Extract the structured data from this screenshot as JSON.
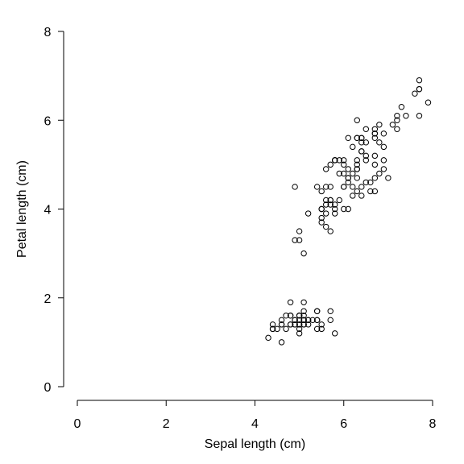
{
  "chart_data": {
    "type": "scatter",
    "title": "",
    "xlabel": "Sepal length (cm)",
    "ylabel": "Petal length (cm)",
    "xlim": [
      0,
      8
    ],
    "ylim": [
      0,
      8
    ],
    "xticks": [
      "0",
      "2",
      "4",
      "6",
      "8"
    ],
    "yticks": [
      "0",
      "2",
      "4",
      "6",
      "8"
    ],
    "grid": false,
    "legend": "none",
    "marker": "open-circle",
    "color": "#000000",
    "series": [
      {
        "points": [
          [
            5.1,
            1.4
          ],
          [
            4.9,
            1.4
          ],
          [
            4.7,
            1.3
          ],
          [
            4.6,
            1.5
          ],
          [
            5.0,
            1.4
          ],
          [
            5.4,
            1.7
          ],
          [
            4.6,
            1.4
          ],
          [
            5.0,
            1.5
          ],
          [
            4.4,
            1.4
          ],
          [
            4.9,
            1.5
          ],
          [
            5.4,
            1.5
          ],
          [
            4.8,
            1.6
          ],
          [
            4.8,
            1.4
          ],
          [
            4.3,
            1.1
          ],
          [
            5.8,
            1.2
          ],
          [
            5.7,
            1.5
          ],
          [
            5.4,
            1.3
          ],
          [
            5.1,
            1.4
          ],
          [
            5.7,
            1.7
          ],
          [
            5.1,
            1.5
          ],
          [
            5.4,
            1.7
          ],
          [
            5.1,
            1.5
          ],
          [
            4.6,
            1.0
          ],
          [
            5.1,
            1.7
          ],
          [
            4.8,
            1.9
          ],
          [
            5.0,
            1.6
          ],
          [
            5.0,
            1.6
          ],
          [
            5.2,
            1.5
          ],
          [
            5.2,
            1.4
          ],
          [
            4.7,
            1.6
          ],
          [
            4.8,
            1.6
          ],
          [
            5.4,
            1.5
          ],
          [
            5.2,
            1.5
          ],
          [
            5.5,
            1.4
          ],
          [
            4.9,
            1.5
          ],
          [
            5.0,
            1.2
          ],
          [
            5.5,
            1.3
          ],
          [
            4.9,
            1.4
          ],
          [
            4.4,
            1.3
          ],
          [
            5.1,
            1.5
          ],
          [
            5.0,
            1.3
          ],
          [
            4.5,
            1.3
          ],
          [
            4.4,
            1.3
          ],
          [
            5.0,
            1.6
          ],
          [
            5.1,
            1.9
          ],
          [
            4.8,
            1.4
          ],
          [
            5.1,
            1.6
          ],
          [
            4.6,
            1.4
          ],
          [
            5.3,
            1.5
          ],
          [
            5.0,
            1.4
          ],
          [
            7.0,
            4.7
          ],
          [
            6.4,
            4.5
          ],
          [
            6.9,
            4.9
          ],
          [
            5.5,
            4.0
          ],
          [
            6.5,
            4.6
          ],
          [
            5.7,
            4.5
          ],
          [
            6.3,
            4.7
          ],
          [
            4.9,
            3.3
          ],
          [
            6.6,
            4.6
          ],
          [
            5.2,
            3.9
          ],
          [
            5.0,
            3.5
          ],
          [
            5.9,
            4.2
          ],
          [
            6.0,
            4.0
          ],
          [
            6.1,
            4.7
          ],
          [
            5.6,
            3.6
          ],
          [
            6.7,
            4.4
          ],
          [
            5.6,
            4.5
          ],
          [
            5.8,
            4.1
          ],
          [
            6.2,
            4.5
          ],
          [
            5.6,
            3.9
          ],
          [
            5.9,
            4.8
          ],
          [
            6.1,
            4.0
          ],
          [
            6.3,
            4.9
          ],
          [
            6.1,
            4.7
          ],
          [
            6.4,
            4.3
          ],
          [
            6.6,
            4.4
          ],
          [
            6.8,
            4.8
          ],
          [
            6.7,
            5.0
          ],
          [
            6.0,
            4.5
          ],
          [
            5.7,
            3.5
          ],
          [
            5.5,
            3.8
          ],
          [
            5.5,
            3.7
          ],
          [
            5.8,
            3.9
          ],
          [
            6.0,
            5.1
          ],
          [
            5.4,
            4.5
          ],
          [
            6.0,
            4.5
          ],
          [
            6.7,
            4.7
          ],
          [
            6.3,
            4.4
          ],
          [
            5.6,
            4.1
          ],
          [
            5.5,
            4.0
          ],
          [
            5.5,
            4.4
          ],
          [
            6.1,
            4.6
          ],
          [
            5.8,
            4.0
          ],
          [
            5.0,
            3.3
          ],
          [
            5.6,
            4.2
          ],
          [
            5.7,
            4.2
          ],
          [
            5.7,
            4.2
          ],
          [
            6.2,
            4.3
          ],
          [
            5.1,
            3.0
          ],
          [
            5.7,
            4.1
          ],
          [
            6.3,
            6.0
          ],
          [
            5.8,
            5.1
          ],
          [
            7.1,
            5.9
          ],
          [
            6.3,
            5.6
          ],
          [
            6.5,
            5.8
          ],
          [
            7.6,
            6.6
          ],
          [
            4.9,
            4.5
          ],
          [
            7.3,
            6.3
          ],
          [
            6.7,
            5.8
          ],
          [
            7.2,
            6.1
          ],
          [
            6.5,
            5.1
          ],
          [
            6.4,
            5.3
          ],
          [
            6.8,
            5.5
          ],
          [
            5.7,
            5.0
          ],
          [
            5.8,
            5.1
          ],
          [
            6.4,
            5.3
          ],
          [
            6.5,
            5.5
          ],
          [
            7.7,
            6.7
          ],
          [
            7.7,
            6.9
          ],
          [
            6.0,
            5.0
          ],
          [
            6.9,
            5.7
          ],
          [
            5.6,
            4.9
          ],
          [
            7.7,
            6.7
          ],
          [
            6.3,
            4.9
          ],
          [
            6.7,
            5.7
          ],
          [
            7.2,
            6.0
          ],
          [
            6.2,
            4.8
          ],
          [
            6.1,
            4.9
          ],
          [
            6.4,
            5.6
          ],
          [
            7.2,
            5.8
          ],
          [
            7.4,
            6.1
          ],
          [
            7.9,
            6.4
          ],
          [
            6.4,
            5.6
          ],
          [
            6.3,
            5.1
          ],
          [
            6.1,
            5.6
          ],
          [
            7.7,
            6.1
          ],
          [
            6.3,
            5.6
          ],
          [
            6.4,
            5.5
          ],
          [
            6.0,
            4.8
          ],
          [
            6.9,
            5.4
          ],
          [
            6.7,
            5.6
          ],
          [
            6.9,
            5.1
          ],
          [
            5.8,
            5.1
          ],
          [
            6.8,
            5.9
          ],
          [
            6.7,
            5.7
          ],
          [
            6.7,
            5.2
          ],
          [
            6.3,
            5.0
          ],
          [
            6.5,
            5.2
          ],
          [
            6.2,
            5.4
          ],
          [
            5.9,
            5.1
          ]
        ]
      }
    ]
  }
}
